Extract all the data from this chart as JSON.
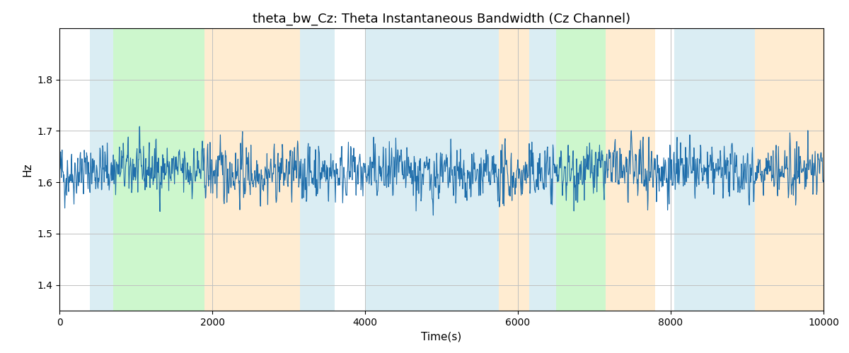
{
  "title": "theta_bw_Cz: Theta Instantaneous Bandwidth (Cz Channel)",
  "xlabel": "Time(s)",
  "ylabel": "Hz",
  "xlim": [
    0,
    10000
  ],
  "ylim": [
    1.35,
    1.9
  ],
  "yticks": [
    1.4,
    1.5,
    1.6,
    1.7,
    1.8
  ],
  "xticks": [
    0,
    2000,
    4000,
    6000,
    8000,
    10000
  ],
  "line_color": "#1f6eab",
  "line_width": 0.8,
  "background_color": "#ffffff",
  "grid_color": "#c0c0c0",
  "signal_mean": 1.618,
  "signal_std": 0.038,
  "seed": 42,
  "n_points": 2000,
  "colored_bands": [
    {
      "start": 400,
      "end": 700,
      "color": "#add8e6",
      "alpha": 0.45
    },
    {
      "start": 700,
      "end": 1900,
      "color": "#90ee90",
      "alpha": 0.45
    },
    {
      "start": 1900,
      "end": 3150,
      "color": "#ffd59a",
      "alpha": 0.45
    },
    {
      "start": 3150,
      "end": 3600,
      "color": "#add8e6",
      "alpha": 0.45
    },
    {
      "start": 4000,
      "end": 5750,
      "color": "#add8e6",
      "alpha": 0.45
    },
    {
      "start": 5750,
      "end": 6150,
      "color": "#ffd59a",
      "alpha": 0.45
    },
    {
      "start": 6150,
      "end": 6500,
      "color": "#add8e6",
      "alpha": 0.45
    },
    {
      "start": 6500,
      "end": 7150,
      "color": "#90ee90",
      "alpha": 0.45
    },
    {
      "start": 7150,
      "end": 7800,
      "color": "#ffd59a",
      "alpha": 0.45
    },
    {
      "start": 8050,
      "end": 9100,
      "color": "#add8e6",
      "alpha": 0.45
    },
    {
      "start": 9100,
      "end": 10000,
      "color": "#ffd59a",
      "alpha": 0.45
    }
  ]
}
